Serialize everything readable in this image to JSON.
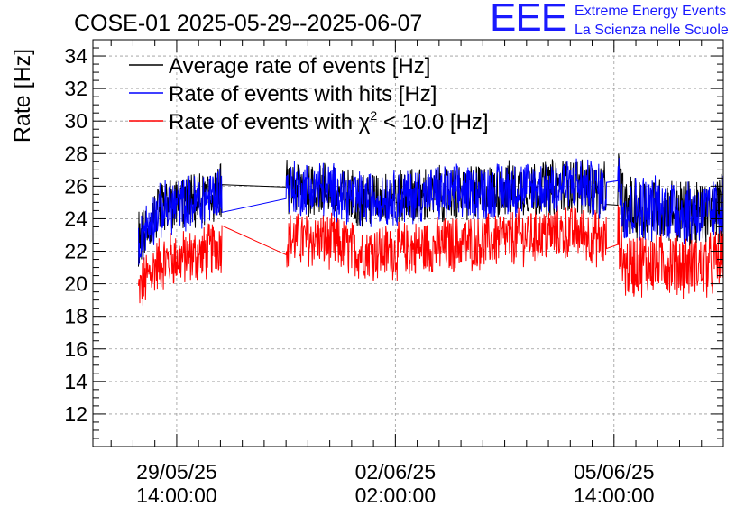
{
  "chart_data": {
    "type": "line",
    "title": "COSE-01 2025-05-29--2025-06-07",
    "ylabel": "Rate [Hz]",
    "xlabel": "",
    "ylim": [
      10,
      35
    ],
    "xlim_hours": [
      -23,
      150
    ],
    "y_ticks": [
      12,
      14,
      16,
      18,
      20,
      22,
      24,
      26,
      28,
      30,
      32,
      34
    ],
    "y_tick_labels": [
      "12",
      "14",
      "16",
      "18",
      "20",
      "22",
      "24",
      "26",
      "28",
      "30",
      "32",
      "34"
    ],
    "x_ticks": [
      {
        "x": 0,
        "date": "29/05/25",
        "time": "14:00:00"
      },
      {
        "x": 60,
        "date": "02/06/25",
        "time": "02:00:00"
      },
      {
        "x": 120,
        "date": "05/06/25",
        "time": "14:00:00"
      }
    ],
    "grid": true,
    "legend": {
      "position": "top-left",
      "entries": [
        {
          "name": "Average rate of events [Hz]",
          "color": "#000000"
        },
        {
          "name": "Rate of events with hits [Hz]",
          "color": "#0000ff"
        },
        {
          "name": "Rate of events with χ² < 10.0 [Hz]",
          "color": "#ff0000",
          "prefix": "Rate of events with ",
          "chi": "χ",
          "sup": "2",
          "suffix": " < 10.0 [Hz]"
        }
      ]
    },
    "series": [
      {
        "name": "Average rate of events [Hz]",
        "color": "#000000",
        "x": [
          -10.5,
          -6,
          -2,
          2,
          7,
          12,
          17,
          20,
          30,
          40,
          50,
          60,
          70,
          80,
          90,
          100,
          110,
          118,
          121,
          123,
          128,
          134,
          140,
          146,
          150
        ],
        "y": [
          22.6,
          24.2,
          24.8,
          24.9,
          25.1,
          25.7,
          26.3,
          25.8,
          25.9,
          25.9,
          25.2,
          25.3,
          25.5,
          25.6,
          25.8,
          25.9,
          26.1,
          25.6,
          26.6,
          24.5,
          24.7,
          24.6,
          24.4,
          24.3,
          24.8
        ]
      },
      {
        "name": "Rate of events with hits [Hz]",
        "color": "#0000ff",
        "x": [
          -10.5,
          -6,
          -2,
          2,
          7,
          12,
          17,
          20,
          30,
          40,
          50,
          60,
          70,
          80,
          90,
          100,
          110,
          118,
          121,
          123,
          128,
          134,
          140,
          146,
          150
        ],
        "y": [
          22.6,
          24.2,
          24.8,
          24.9,
          25.1,
          25.7,
          26.3,
          25.8,
          25.9,
          25.9,
          25.2,
          25.3,
          25.5,
          25.6,
          25.8,
          25.9,
          26.1,
          25.6,
          26.6,
          24.5,
          24.7,
          24.6,
          24.4,
          24.3,
          24.8
        ]
      },
      {
        "name": "Rate of events with χ² < 10.0 [Hz]",
        "color": "#ff0000",
        "x": [
          -10.5,
          -6,
          -2,
          2,
          7,
          12,
          17,
          20,
          30,
          40,
          50,
          60,
          70,
          80,
          90,
          100,
          110,
          118,
          121,
          123,
          128,
          134,
          140,
          146,
          150
        ],
        "y": [
          19.5,
          21.1,
          21.5,
          21.6,
          21.8,
          22.4,
          23.1,
          22.6,
          22.7,
          22.7,
          22.0,
          22.0,
          22.3,
          22.5,
          22.8,
          23.0,
          23.2,
          22.6,
          23.3,
          21.0,
          21.3,
          21.4,
          21.2,
          21.1,
          21.6
        ]
      }
    ],
    "segments": [
      [
        -10.5,
        12.5
      ],
      [
        30,
        118
      ],
      [
        121,
        150
      ]
    ],
    "noise_amplitude_hz": [
      1.6,
      1.6,
      1.9
    ]
  },
  "branding": {
    "logo": "EEE",
    "line1": "Extreme Energy Events",
    "line2": "La Scienza nelle Scuole"
  }
}
